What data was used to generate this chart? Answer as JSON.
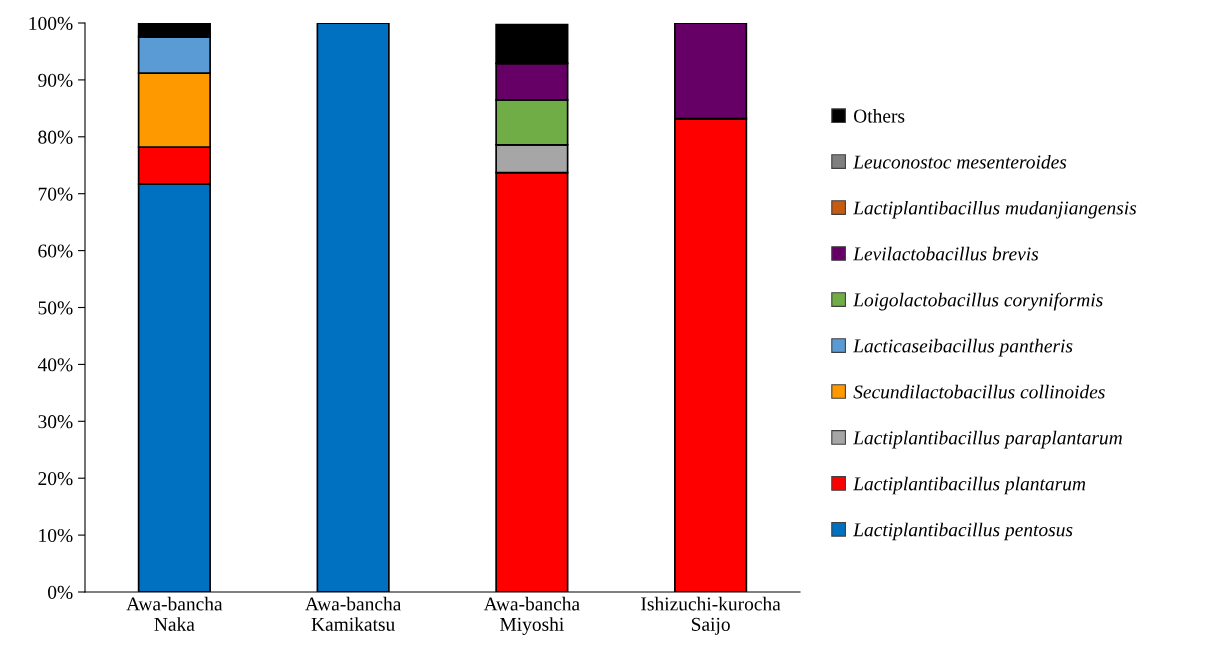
{
  "chart_data": {
    "type": "bar",
    "stacked": true,
    "legend": "right",
    "grid": false,
    "categories": [
      "Awa-bancha\nNaka",
      "Awa-bancha\nKamikatsu",
      "Awa-bancha\nMiyoshi",
      "Ishizuchi-kurocha\nSaijo"
    ],
    "ylim": [
      0,
      100
    ],
    "yticks": [
      {
        "value": 0,
        "label": "0%"
      },
      {
        "value": 10,
        "label": "10%"
      },
      {
        "value": 20,
        "label": "20%"
      },
      {
        "value": 30,
        "label": "30%"
      },
      {
        "value": 40,
        "label": "40%"
      },
      {
        "value": 50,
        "label": "50%"
      },
      {
        "value": 60,
        "label": "60%"
      },
      {
        "value": 70,
        "label": "70%"
      },
      {
        "value": 80,
        "label": "80%"
      },
      {
        "value": 90,
        "label": "90%"
      },
      {
        "value": 100,
        "label": "100%"
      }
    ],
    "series": [
      {
        "name": "Lactiplantibacillus pentosus",
        "color": "#0070c0",
        "values": [
          71.7,
          100,
          0,
          0
        ]
      },
      {
        "name": "Lactiplantibacillus plantarum",
        "color": "#ff0000",
        "values": [
          6.5,
          0,
          73.7,
          83.2
        ]
      },
      {
        "name": "Lactiplantibacillus paraplantarum",
        "color": "#a6a6a6",
        "values": [
          0,
          0,
          4.9,
          0
        ]
      },
      {
        "name": "Secundilactobacillus collinoides",
        "color": "#ff9900",
        "values": [
          13.0,
          0,
          0,
          0
        ]
      },
      {
        "name": "Lacticaseibacillus pantheris",
        "color": "#5b9bd5",
        "values": [
          6.4,
          0,
          0,
          0
        ]
      },
      {
        "name": "Loigolactobacillus coryniformis",
        "color": "#70ad47",
        "values": [
          0,
          0,
          7.9,
          0
        ]
      },
      {
        "name": "Levilactobacillus brevis",
        "color": "#660066",
        "values": [
          0,
          0,
          6.4,
          16.8
        ]
      },
      {
        "name": "Lactiplantibacillus mudanjiangensis",
        "color": "#c55a11",
        "values": [
          0,
          0,
          0,
          0
        ]
      },
      {
        "name": "Leuconostoc mesenteroides",
        "color": "#7f7f7f",
        "values": [
          0,
          0,
          0,
          0
        ]
      },
      {
        "name": "Others",
        "color": "#000000",
        "values": [
          2.4,
          0,
          6.8,
          0
        ]
      }
    ]
  }
}
